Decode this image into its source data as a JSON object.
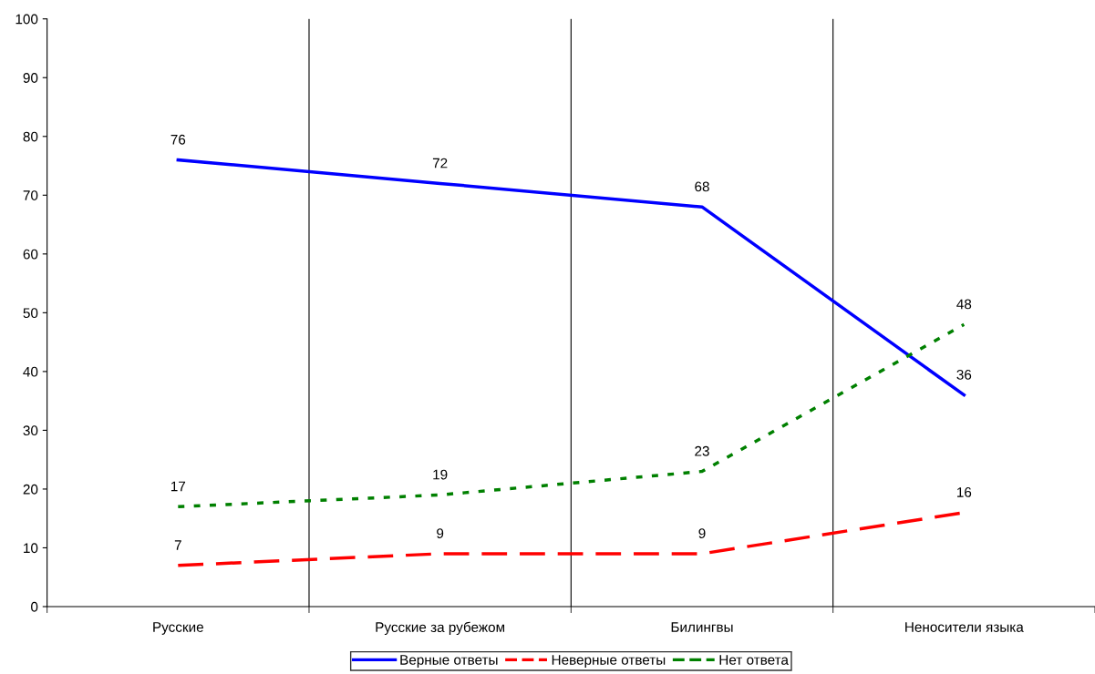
{
  "chart_data": {
    "type": "line",
    "categories": [
      "Русские",
      "Русские за рубежом",
      "Билингвы",
      "Неносители языка"
    ],
    "series": [
      {
        "name": "Верные ответы",
        "color": "#0000ff",
        "line_style": "solid",
        "values": [
          76,
          72,
          68,
          36
        ]
      },
      {
        "name": "Неверные ответы",
        "color": "#ff0000",
        "line_style": "dashed",
        "values": [
          7,
          9,
          9,
          16
        ]
      },
      {
        "name": "Нет ответа",
        "color": "#008000",
        "line_style": "dotted",
        "values": [
          17,
          19,
          23,
          48
        ]
      }
    ],
    "ylim": [
      0,
      100
    ],
    "yticks": [
      0,
      10,
      20,
      30,
      40,
      50,
      60,
      70,
      80,
      90,
      100
    ],
    "grid": "x",
    "legend": "bottom",
    "marker": "none",
    "data_labels": true
  }
}
